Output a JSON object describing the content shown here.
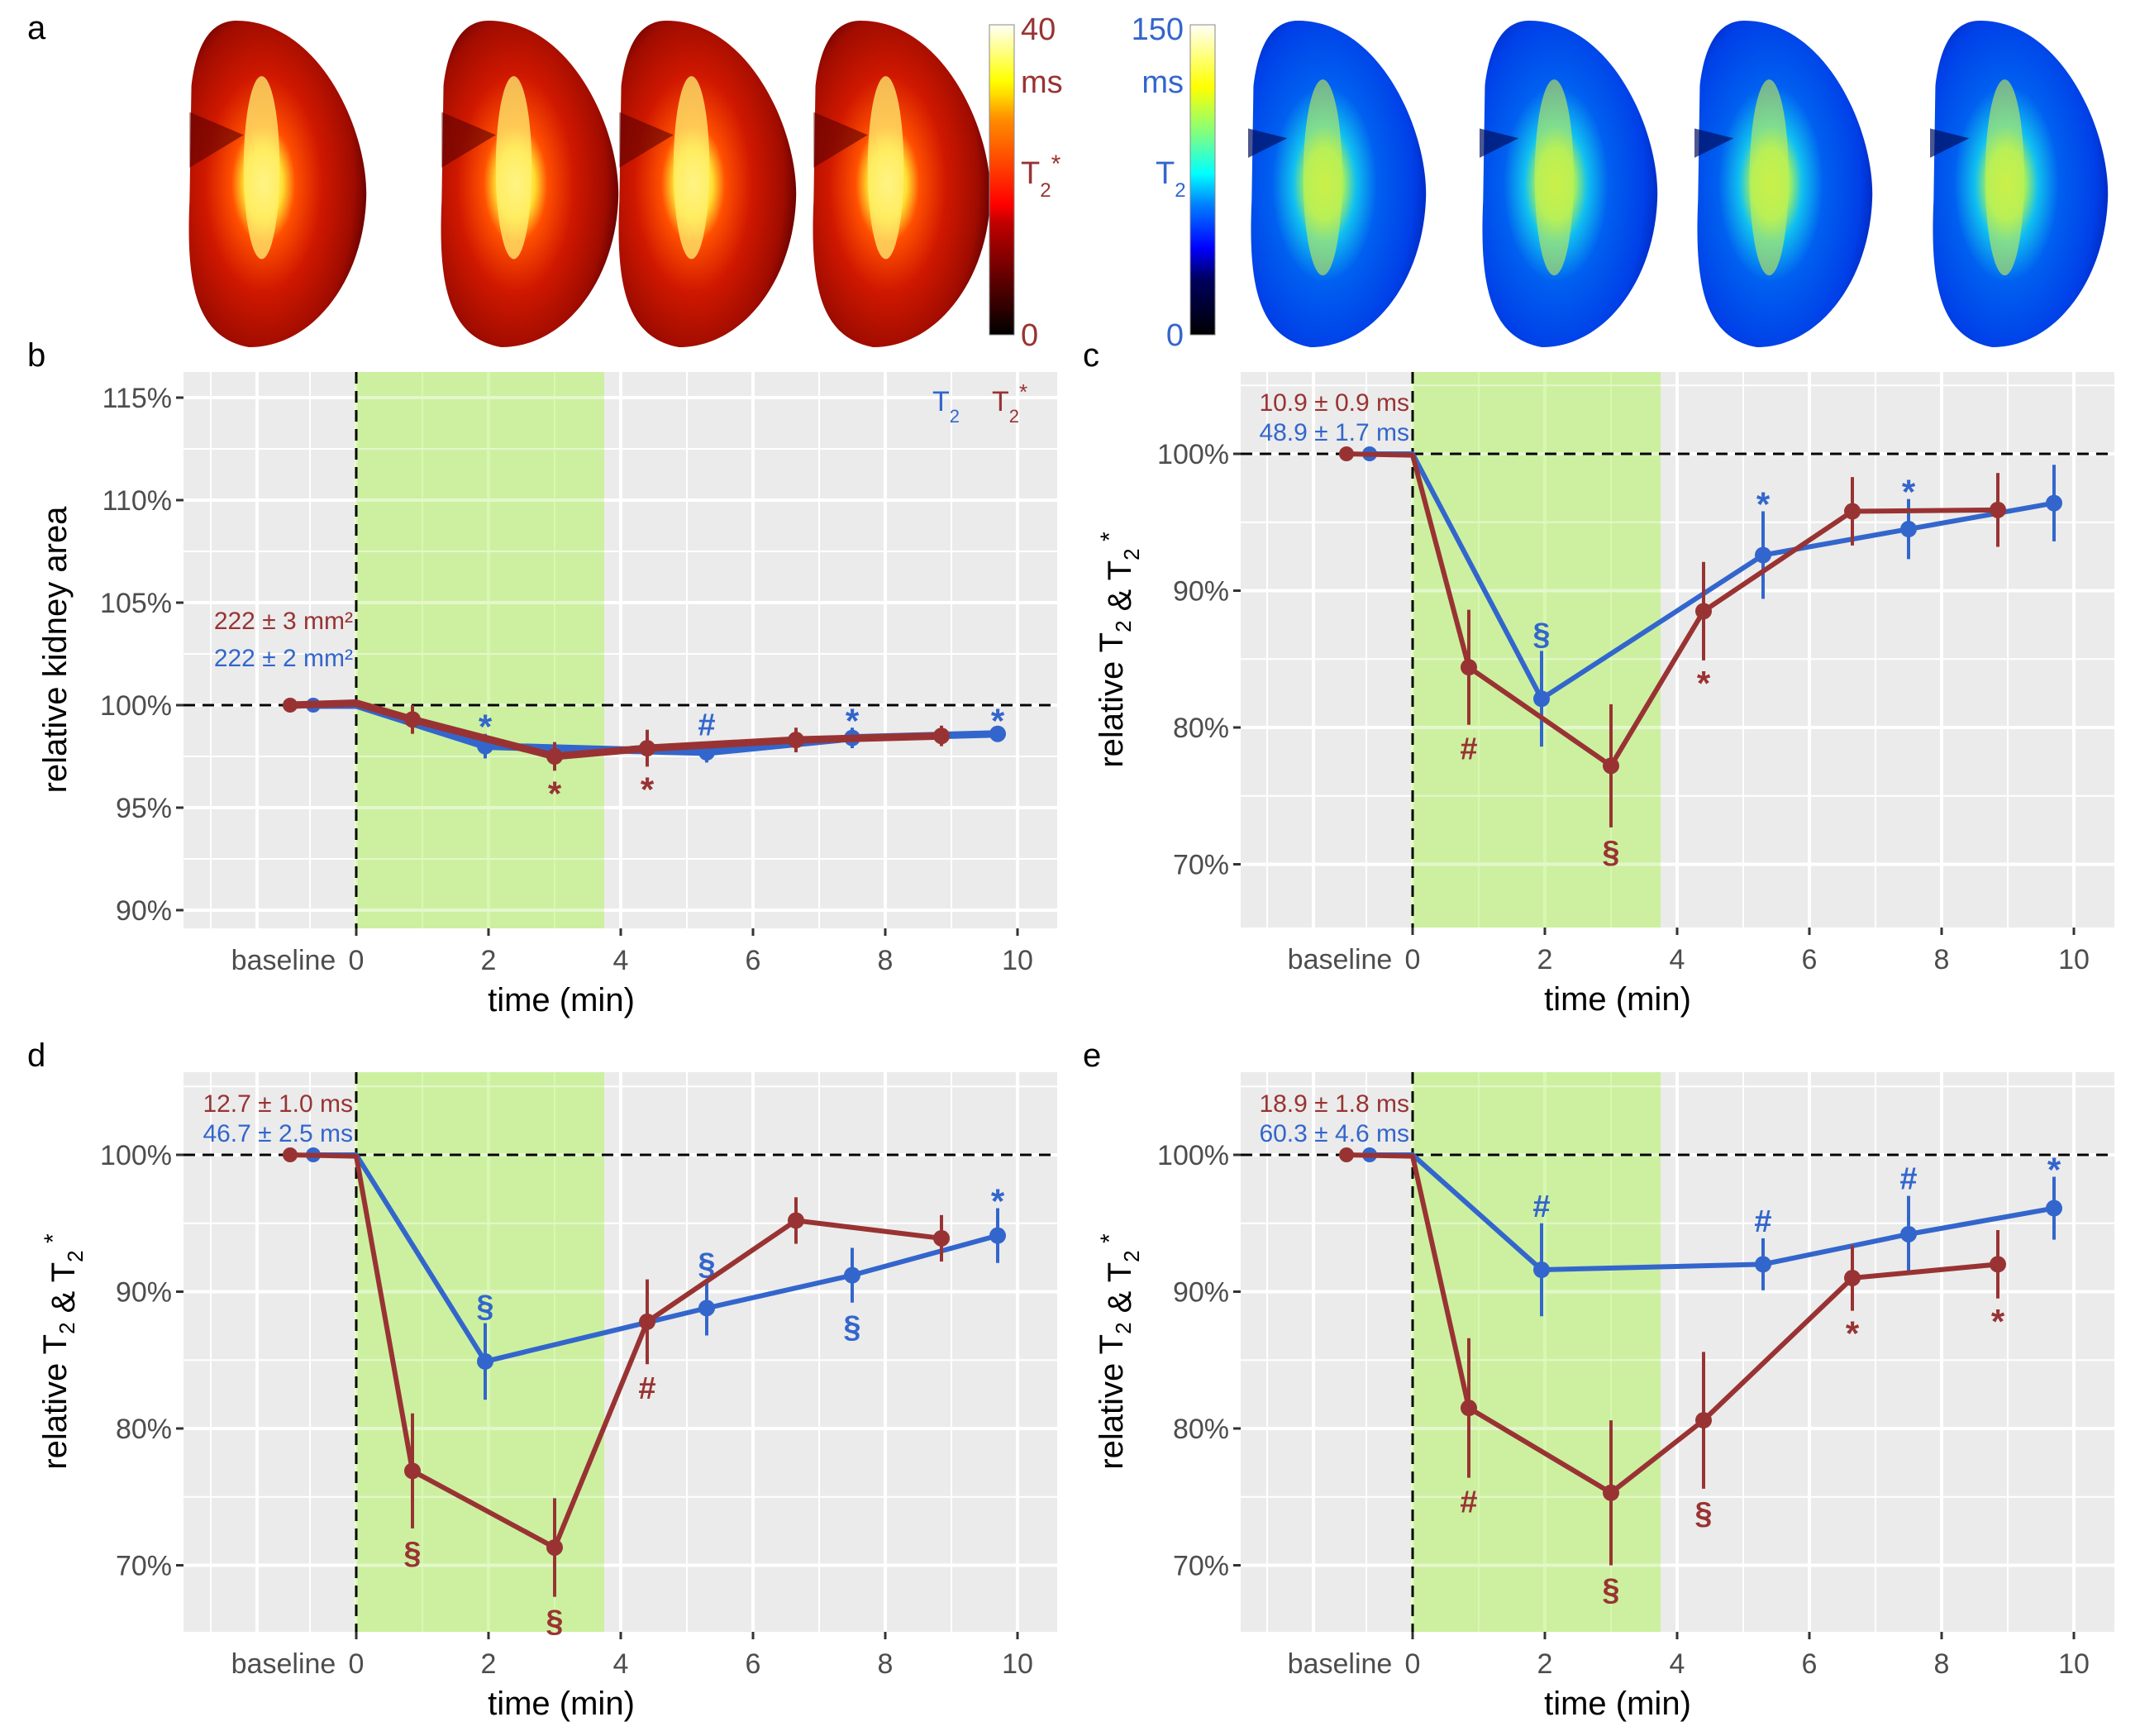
{
  "panel_labels": [
    "a",
    "b",
    "c",
    "d",
    "e"
  ],
  "colors": {
    "t2": "#3366CC",
    "t2star": "#993333",
    "panel_bg": "#EBEBEB",
    "grid": "#FFFFFF",
    "shade": "#CCF0A0",
    "tick_text": "#4D4D4D"
  },
  "panel_a": {
    "t2star_colorbar": {
      "max_label": "40",
      "unit": "ms",
      "symbol": "T",
      "sub": "2",
      "sup": "*",
      "min_label": "0",
      "colormap": "hot"
    },
    "t2_colorbar": {
      "max_label": "150",
      "unit": "ms",
      "symbol": "T",
      "sub": "2",
      "min_label": "0",
      "colormap": "jet"
    },
    "t2star_maps": 4,
    "t2_maps": 4
  },
  "legend": {
    "t2": {
      "symbol": "T",
      "sub": "2"
    },
    "t2star": {
      "symbol": "T",
      "sub": "2",
      "sup": "*"
    }
  },
  "chart_data": [
    {
      "id": "b",
      "type": "line",
      "title": "",
      "xlabel": "time (min)",
      "ylabel": "relative kidney area",
      "x_ticks": [
        "0",
        "2",
        "4",
        "6",
        "8",
        "10"
      ],
      "x_tick_values": [
        0,
        2,
        4,
        6,
        8,
        10
      ],
      "baseline_label": "baseline",
      "xlim": [
        -2.7,
        10.5
      ],
      "ylim": [
        88.8,
        116.5
      ],
      "y_ticks": [
        90,
        95,
        100,
        105,
        110,
        115
      ],
      "y_tick_labels": [
        "90%",
        "95%",
        "100%",
        "105%",
        "110%",
        "115%"
      ],
      "shade": [
        0,
        3.75
      ],
      "reference_y": 100,
      "annotations": [
        {
          "text": "222 ± 3 mm²",
          "series": "t2star"
        },
        {
          "text": "222 ± 2 mm²",
          "series": "t2"
        }
      ],
      "legend_position": "top-right",
      "series": [
        {
          "name": "T2*",
          "key": "t2star",
          "baseline": {
            "x": -1.0,
            "y": 100.0
          },
          "x": [
            0,
            0.85,
            3.0,
            4.4,
            6.65,
            8.85
          ],
          "y": [
            100.1,
            99.3,
            97.5,
            97.9,
            98.3,
            98.5
          ],
          "err": [
            0,
            0.7,
            0.7,
            0.9,
            0.6,
            0.5
          ],
          "marks": [
            null,
            null,
            "*",
            "*",
            null,
            null
          ],
          "mark_pos": [
            null,
            null,
            "below",
            "below",
            null,
            null
          ]
        },
        {
          "name": "T2",
          "key": "t2",
          "baseline": {
            "x": -0.65,
            "y": 100.0
          },
          "x": [
            0,
            1.95,
            5.3,
            7.5,
            9.7
          ],
          "y": [
            100.0,
            98.0,
            97.7,
            98.4,
            98.6
          ],
          "err": [
            0,
            0.6,
            0.5,
            0.5,
            0.3
          ],
          "marks": [
            null,
            "*",
            "#",
            "*",
            "*"
          ],
          "mark_pos": [
            null,
            "above",
            "above",
            "above",
            "above"
          ],
          "line_via": [
            [
              3.75,
              97.9
            ]
          ]
        }
      ]
    },
    {
      "id": "c",
      "type": "line",
      "xlabel": "time (min)",
      "ylabel": "relative T2 & T2*",
      "x_ticks": [
        "0",
        "2",
        "4",
        "6",
        "8",
        "10"
      ],
      "x_tick_values": [
        0,
        2,
        4,
        6,
        8,
        10
      ],
      "baseline_label": "baseline",
      "xlim": [
        -2.6,
        10.6
      ],
      "ylim": [
        64.9,
        105.5
      ],
      "y_ticks": [
        70,
        80,
        90,
        100
      ],
      "y_tick_labels": [
        "70%",
        "80%",
        "90%",
        "100%"
      ],
      "shade": [
        0,
        3.75
      ],
      "reference_y": 100,
      "annotations": [
        {
          "text": "10.9 ± 0.9 ms",
          "series": "t2star"
        },
        {
          "text": "48.9 ± 1.7 ms",
          "series": "t2"
        }
      ],
      "series": [
        {
          "name": "T2*",
          "key": "t2star",
          "baseline": {
            "x": -1.0,
            "y": 100.0
          },
          "x": [
            0,
            0.85,
            3.0,
            4.4,
            6.65,
            8.85
          ],
          "y": [
            99.9,
            84.4,
            77.2,
            88.5,
            95.8,
            95.9
          ],
          "err": [
            0,
            4.2,
            4.5,
            3.6,
            2.5,
            2.7
          ],
          "marks": [
            null,
            "#",
            "§",
            "*",
            null,
            null
          ],
          "mark_pos": [
            null,
            "below",
            "below",
            "below",
            null,
            null
          ]
        },
        {
          "name": "T2",
          "key": "t2",
          "baseline": {
            "x": -0.65,
            "y": 100.0
          },
          "x": [
            0,
            1.95,
            5.3,
            7.5,
            9.7
          ],
          "y": [
            100.0,
            82.1,
            92.6,
            94.5,
            96.4
          ],
          "err": [
            0,
            3.5,
            3.2,
            2.2,
            2.8
          ],
          "marks": [
            null,
            "§",
            "*",
            "*",
            null
          ],
          "mark_pos": [
            null,
            "above",
            "above",
            "above",
            null
          ]
        }
      ]
    },
    {
      "id": "d",
      "type": "line",
      "xlabel": "time (min)",
      "ylabel": "relative T2 & T2*",
      "x_ticks": [
        "0",
        "2",
        "4",
        "6",
        "8",
        "10"
      ],
      "x_tick_values": [
        0,
        2,
        4,
        6,
        8,
        10
      ],
      "baseline_label": "baseline",
      "xlim": [
        -2.7,
        10.5
      ],
      "ylim": [
        65.1,
        106.0
      ],
      "y_ticks": [
        70,
        80,
        90,
        100
      ],
      "y_tick_labels": [
        "70%",
        "80%",
        "90%",
        "100%"
      ],
      "shade": [
        0,
        3.75
      ],
      "reference_y": 100,
      "annotations": [
        {
          "text": "12.7 ± 1.0 ms",
          "series": "t2star"
        },
        {
          "text": "46.7 ± 2.5 ms",
          "series": "t2"
        }
      ],
      "series": [
        {
          "name": "T2*",
          "key": "t2star",
          "baseline": {
            "x": -1.0,
            "y": 100.0
          },
          "x": [
            0,
            0.85,
            3.0,
            4.4,
            6.65,
            8.85
          ],
          "y": [
            99.9,
            76.9,
            71.3,
            87.8,
            95.2,
            93.9
          ],
          "err": [
            0,
            4.2,
            3.6,
            3.1,
            1.7,
            1.7
          ],
          "marks": [
            null,
            "§",
            "§",
            "#",
            null,
            null
          ],
          "mark_pos": [
            null,
            "below",
            "below",
            "below",
            null,
            null
          ]
        },
        {
          "name": "T2",
          "key": "t2",
          "baseline": {
            "x": -0.65,
            "y": 100.0
          },
          "x": [
            0,
            1.95,
            5.3,
            7.5,
            9.7
          ],
          "y": [
            100.0,
            84.9,
            88.8,
            91.2,
            94.1
          ],
          "err": [
            0,
            2.8,
            2.0,
            2.0,
            2.0
          ],
          "marks": [
            null,
            "§",
            "§",
            "§",
            "*"
          ],
          "mark_pos": [
            null,
            "above",
            "above",
            "below",
            "above"
          ]
        }
      ]
    },
    {
      "id": "e",
      "type": "line",
      "xlabel": "time (min)",
      "ylabel": "relative T2 & T2*",
      "x_ticks": [
        "0",
        "2",
        "4",
        "6",
        "8",
        "10"
      ],
      "x_tick_values": [
        0,
        2,
        4,
        6,
        8,
        10
      ],
      "baseline_label": "baseline",
      "xlim": [
        -2.6,
        10.6
      ],
      "ylim": [
        65.1,
        106.0
      ],
      "y_ticks": [
        70,
        80,
        90,
        100
      ],
      "y_tick_labels": [
        "70%",
        "80%",
        "90%",
        "100%"
      ],
      "shade": [
        0,
        3.75
      ],
      "reference_y": 100,
      "annotations": [
        {
          "text": "18.9 ± 1.8 ms",
          "series": "t2star"
        },
        {
          "text": "60.3 ± 4.6 ms",
          "series": "t2"
        }
      ],
      "series": [
        {
          "name": "T2*",
          "key": "t2star",
          "baseline": {
            "x": -1.0,
            "y": 100.0
          },
          "x": [
            0,
            0.85,
            3.0,
            4.4,
            6.65,
            8.85
          ],
          "y": [
            99.9,
            81.5,
            75.3,
            80.6,
            91.0,
            92.0
          ],
          "err": [
            0,
            5.1,
            5.3,
            5.0,
            2.4,
            2.5
          ],
          "marks": [
            null,
            "#",
            "§",
            "§",
            "*",
            "*"
          ],
          "mark_pos": [
            null,
            "below",
            "below",
            "below",
            "below",
            "below"
          ]
        },
        {
          "name": "T2",
          "key": "t2",
          "baseline": {
            "x": -0.65,
            "y": 100.0
          },
          "x": [
            0,
            1.95,
            5.3,
            7.5,
            9.7
          ],
          "y": [
            100.0,
            91.6,
            92.0,
            94.2,
            96.1
          ],
          "err": [
            0,
            3.4,
            1.9,
            2.8,
            2.3
          ],
          "marks": [
            null,
            "#",
            "#",
            "#",
            "*"
          ],
          "mark_pos": [
            null,
            "above",
            "above",
            "above",
            "above"
          ]
        }
      ]
    }
  ]
}
